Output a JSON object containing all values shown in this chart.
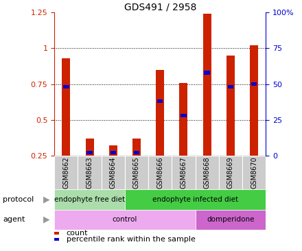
{
  "title": "GDS491 / 2958",
  "samples": [
    "GSM8662",
    "GSM8663",
    "GSM8664",
    "GSM8665",
    "GSM8666",
    "GSM8667",
    "GSM8668",
    "GSM8669",
    "GSM8670"
  ],
  "red_values": [
    0.93,
    0.37,
    0.32,
    0.37,
    0.85,
    0.76,
    1.24,
    0.95,
    1.02
  ],
  "blue_values": [
    0.73,
    0.27,
    0.27,
    0.27,
    0.63,
    0.53,
    0.83,
    0.73,
    0.75
  ],
  "ylim_left": [
    0.25,
    1.25
  ],
  "ylim_right": [
    0,
    100
  ],
  "yticks_left": [
    0.25,
    0.5,
    0.75,
    1.0,
    1.25
  ],
  "yticks_right": [
    0,
    25,
    50,
    75,
    100
  ],
  "ytick_labels_left": [
    "0.25",
    "0.5",
    "0.75",
    "1",
    "1.25"
  ],
  "ytick_labels_right": [
    "0",
    "25",
    "50",
    "75",
    "100%"
  ],
  "left_axis_color": "#cc2200",
  "right_axis_color": "#0000cc",
  "bar_color_red": "#cc2200",
  "bar_color_blue": "#0000cc",
  "protocol_row": {
    "label": "protocol",
    "groups": [
      {
        "text": "endophyte free diet",
        "start": 0,
        "end": 3,
        "color": "#aaddaa"
      },
      {
        "text": "endophyte infected diet",
        "start": 3,
        "end": 9,
        "color": "#44cc44"
      }
    ]
  },
  "agent_row": {
    "label": "agent",
    "groups": [
      {
        "text": "control",
        "start": 0,
        "end": 6,
        "color": "#eeaaee"
      },
      {
        "text": "domperidone",
        "start": 6,
        "end": 9,
        "color": "#cc66cc"
      }
    ]
  },
  "legend_items": [
    {
      "color": "#cc2200",
      "label": "count"
    },
    {
      "color": "#0000cc",
      "label": "percentile rank within the sample"
    }
  ],
  "bar_width": 0.35,
  "tick_label_color_left": "#cc2200",
  "tick_label_color_right": "#0000cc",
  "bg_color": "#ffffff",
  "sample_band_color": "#cccccc",
  "grid_ticks": [
    0.5,
    0.75,
    1.0
  ]
}
